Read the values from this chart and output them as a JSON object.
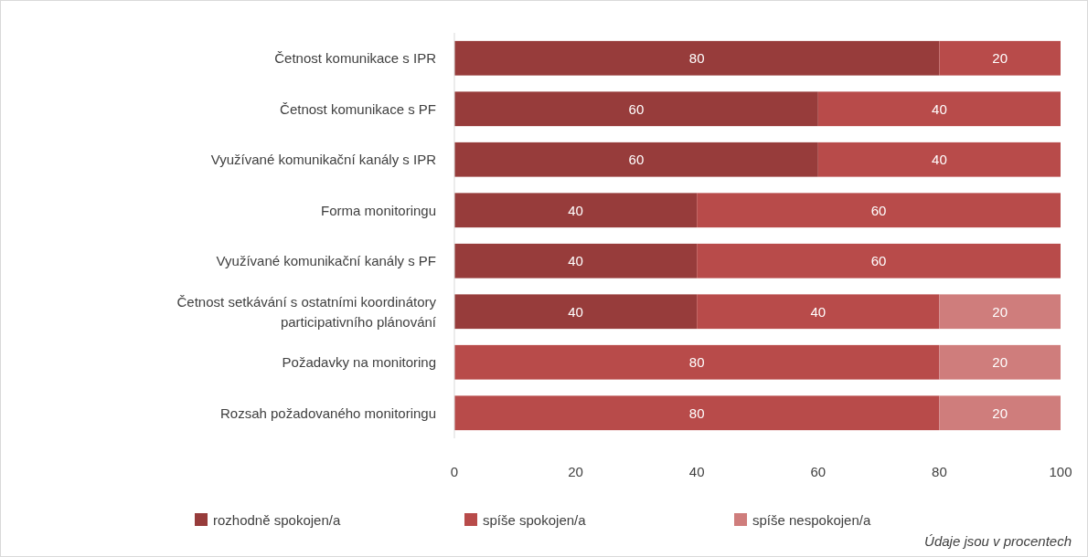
{
  "chart_data": {
    "type": "bar",
    "orientation": "horizontal",
    "stacked": true,
    "categories": [
      "Četnost komunikace s IPR",
      "Četnost komunikace  s PF",
      "Využívané komunikační kanály s IPR",
      "Forma monitoringu",
      "Využívané komunikační kanály s PF",
      "Četnost setkávání s ostatními koordinátory participativního plánování",
      "Požadavky na monitoring",
      "Rozsah požadovaného monitoringu"
    ],
    "series": [
      {
        "name": "rozhodně spokojen/a",
        "color": "#973c3b",
        "values": [
          80,
          60,
          60,
          40,
          40,
          40,
          null,
          null
        ]
      },
      {
        "name": "spíše spokojen/a",
        "color": "#b84b4a",
        "values": [
          20,
          40,
          40,
          60,
          60,
          40,
          80,
          80
        ]
      },
      {
        "name": "spíše nespokojen/a",
        "color": "#cf7d7c",
        "values": [
          null,
          null,
          null,
          null,
          null,
          20,
          20,
          20
        ]
      }
    ],
    "xlim": [
      0,
      100
    ],
    "xticks": [
      0,
      20,
      40,
      60,
      80,
      100
    ],
    "grid": false,
    "legend": "bottom",
    "data_labels": true,
    "annotations": [
      "Údaje jsou v procentech"
    ]
  }
}
